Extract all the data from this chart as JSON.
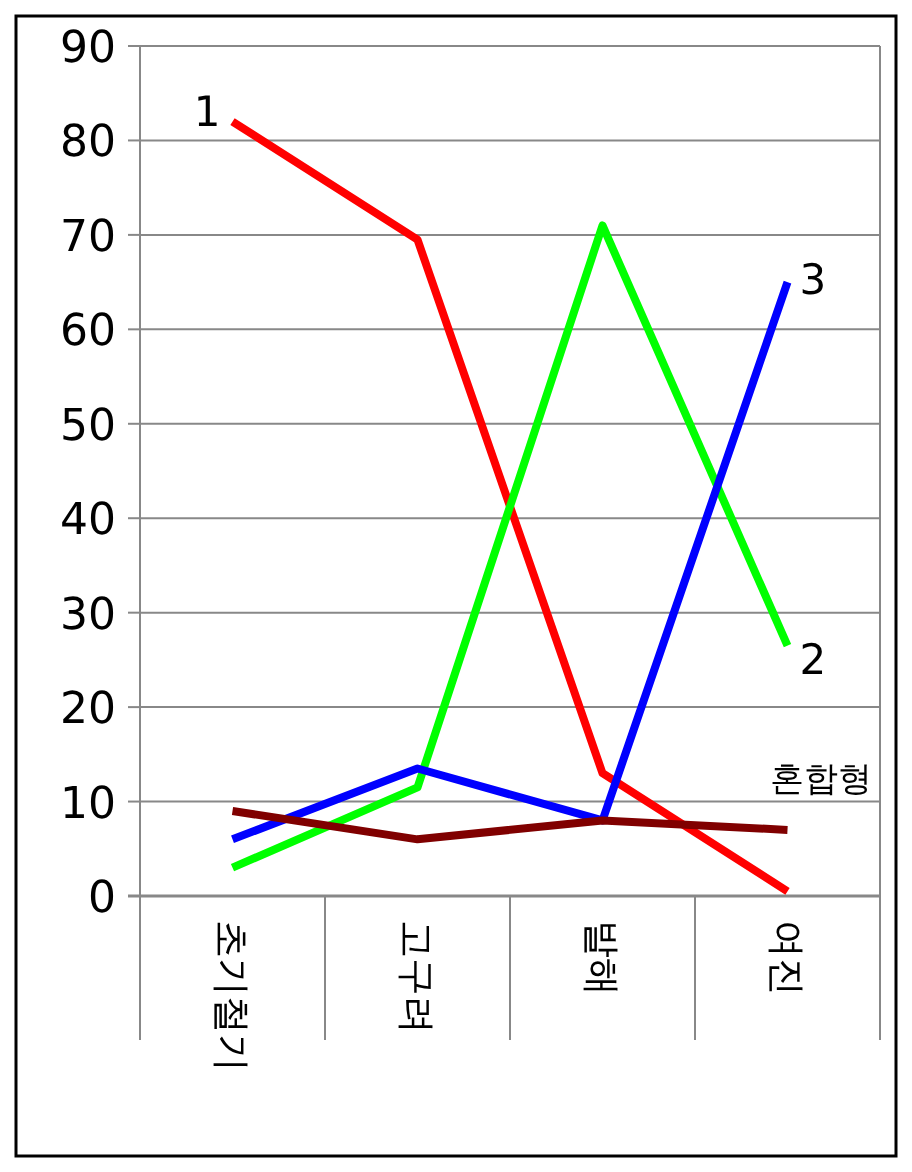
{
  "chart_data": {
    "type": "line",
    "categories": [
      "초기철기",
      "고구려",
      "발해",
      "여진"
    ],
    "series": [
      {
        "name": "1",
        "color": "#ff0000",
        "values": [
          82,
          69.5,
          13,
          0.5
        ]
      },
      {
        "name": "2",
        "color": "#00ff00",
        "values": [
          3,
          11.5,
          71,
          26.5
        ]
      },
      {
        "name": "3",
        "color": "#0000ff",
        "values": [
          6,
          13.5,
          8,
          65
        ]
      },
      {
        "name": "혼합형",
        "color": "#800000",
        "values": [
          9,
          6,
          8,
          7
        ]
      }
    ],
    "ylim": [
      0,
      90
    ],
    "yticks": [
      0,
      10,
      20,
      30,
      40,
      50,
      60,
      70,
      80,
      90
    ],
    "grid": "y",
    "legend": false,
    "marker": "none",
    "line_style": "solid"
  }
}
